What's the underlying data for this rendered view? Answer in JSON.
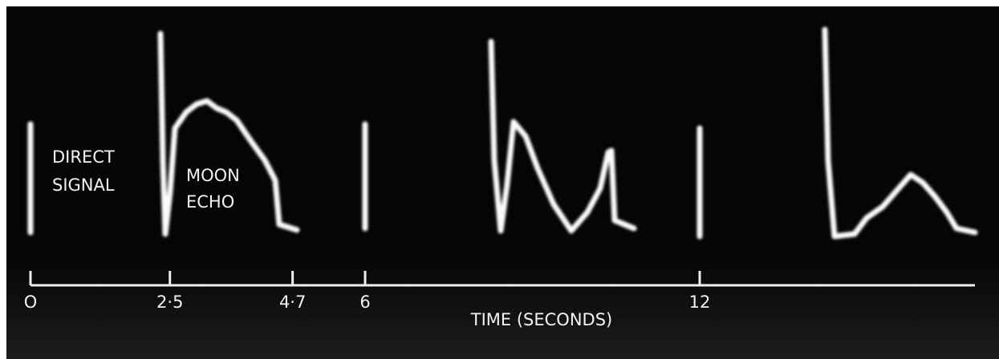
{
  "annotations": {
    "direct_signal": [
      "DIRECT",
      "SIGNAL"
    ],
    "moon_echo": [
      "MOON",
      "ECHO"
    ]
  },
  "axis": {
    "label": "TIME (SECONDS)",
    "ticks": [
      {
        "value": 0,
        "label": "O"
      },
      {
        "value": 2.5,
        "label": "2·5"
      },
      {
        "value": 4.7,
        "label": "4·7"
      },
      6,
      12
    ]
  }
}
